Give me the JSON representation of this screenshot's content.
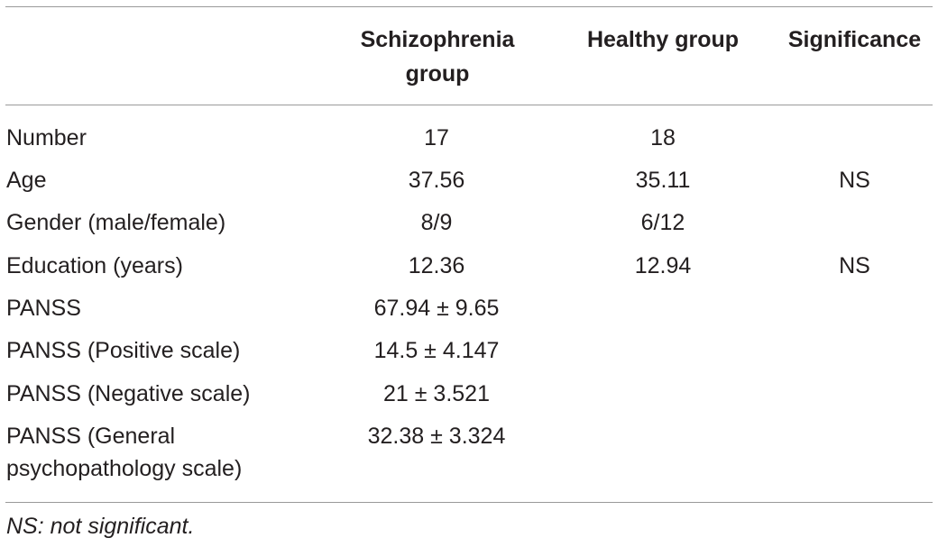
{
  "table": {
    "headers": {
      "col1": "Schizophrenia group",
      "col2": "Healthy group",
      "col3": "Significance"
    },
    "rows": [
      {
        "label": "Number",
        "schizophrenia": "17",
        "healthy": "18",
        "significance": ""
      },
      {
        "label": "Age",
        "schizophrenia": "37.56",
        "healthy": "35.11",
        "significance": "NS"
      },
      {
        "label": "Gender (male/female)",
        "schizophrenia": "8/9",
        "healthy": "6/12",
        "significance": ""
      },
      {
        "label": "Education (years)",
        "schizophrenia": "12.36",
        "healthy": "12.94",
        "significance": "NS"
      },
      {
        "label": "PANSS",
        "schizophrenia": "67.94 ± 9.65",
        "healthy": "",
        "significance": ""
      },
      {
        "label": "PANSS (Positive scale)",
        "schizophrenia": "14.5 ± 4.147",
        "healthy": "",
        "significance": ""
      },
      {
        "label": "PANSS (Negative scale)",
        "schizophrenia": "21 ± 3.521",
        "healthy": "",
        "significance": ""
      },
      {
        "label": "PANSS (General psychopathology scale)",
        "schizophrenia": "32.38 ± 3.324",
        "healthy": "",
        "significance": ""
      }
    ],
    "footnote": "NS: not significant."
  }
}
